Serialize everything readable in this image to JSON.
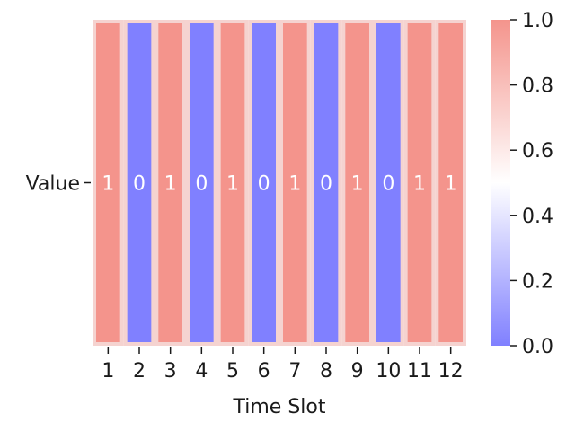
{
  "chart_data": {
    "type": "heatmap",
    "title": "",
    "xlabel": "Time Slot",
    "ylabel": "",
    "x_categories": [
      "1",
      "2",
      "3",
      "4",
      "5",
      "6",
      "7",
      "8",
      "9",
      "10",
      "11",
      "12"
    ],
    "y_categories": [
      "Value"
    ],
    "values": [
      [
        1,
        0,
        1,
        0,
        1,
        0,
        1,
        0,
        1,
        0,
        1,
        1
      ]
    ],
    "annotations": [
      "1",
      "0",
      "1",
      "0",
      "1",
      "0",
      "1",
      "0",
      "1",
      "0",
      "1",
      "1"
    ],
    "colorbar": {
      "range": [
        0.0,
        1.0
      ],
      "tick_labels": [
        "0.0",
        "0.2",
        "0.4",
        "0.6",
        "0.8",
        "1.0"
      ],
      "colors": {
        "low": "#8080ff",
        "mid": "#ffffff",
        "high": "#f4948c"
      }
    },
    "cell_border_color": "#f5d3d0",
    "grid": false,
    "legend": "colorbar-right"
  }
}
